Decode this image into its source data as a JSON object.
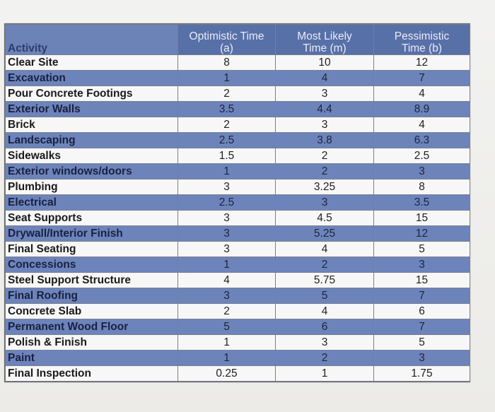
{
  "table": {
    "headers": {
      "activity": "Activity",
      "optimistic": [
        "Optimistic Time",
        "(a)"
      ],
      "most_likely": [
        "Most Likely",
        "Time (m)"
      ],
      "pessimistic": [
        "Pessimistic",
        "Time (b)"
      ]
    },
    "rows": [
      {
        "activity": "Clear Site",
        "a": "8",
        "m": "10",
        "b": "12"
      },
      {
        "activity": "Excavation",
        "a": "1",
        "m": "4",
        "b": "7"
      },
      {
        "activity": "Pour Concrete Footings",
        "a": "2",
        "m": "3",
        "b": "4"
      },
      {
        "activity": "Exterior Walls",
        "a": "3.5",
        "m": "4.4",
        "b": "8.9"
      },
      {
        "activity": "Brick",
        "a": "2",
        "m": "3",
        "b": "4"
      },
      {
        "activity": "Landscaping",
        "a": "2.5",
        "m": "3.8",
        "b": "6.3"
      },
      {
        "activity": "Sidewalks",
        "a": "1.5",
        "m": "2",
        "b": "2.5"
      },
      {
        "activity": "Exterior windows/doors",
        "a": "1",
        "m": "2",
        "b": "3"
      },
      {
        "activity": "Plumbing",
        "a": "3",
        "m": "3.25",
        "b": "8"
      },
      {
        "activity": "Electrical",
        "a": "2.5",
        "m": "3",
        "b": "3.5"
      },
      {
        "activity": "Seat Supports",
        "a": "3",
        "m": "4.5",
        "b": "15"
      },
      {
        "activity": "Drywall/Interior Finish",
        "a": "3",
        "m": "5.25",
        "b": "12"
      },
      {
        "activity": "Final Seating",
        "a": "3",
        "m": "4",
        "b": "5"
      },
      {
        "activity": "Concessions",
        "a": "1",
        "m": "2",
        "b": "3"
      },
      {
        "activity": "Steel Support Structure",
        "a": "4",
        "m": "5.75",
        "b": "15"
      },
      {
        "activity": "Final Roofing",
        "a": "3",
        "m": "5",
        "b": "7"
      },
      {
        "activity": "Concrete Slab",
        "a": "2",
        "m": "4",
        "b": "6"
      },
      {
        "activity": "Permanent Wood Floor",
        "a": "5",
        "m": "6",
        "b": "7"
      },
      {
        "activity": "Polish & Finish",
        "a": "1",
        "m": "3",
        "b": "5"
      },
      {
        "activity": "Paint",
        "a": "1",
        "m": "2",
        "b": "3"
      },
      {
        "activity": "Final Inspection",
        "a": "0.25",
        "m": "1",
        "b": "1.75"
      }
    ]
  },
  "colors": {
    "band_dark": "#6d84bb",
    "band_light": "#f7f7f7",
    "header": "#5870a8"
  }
}
